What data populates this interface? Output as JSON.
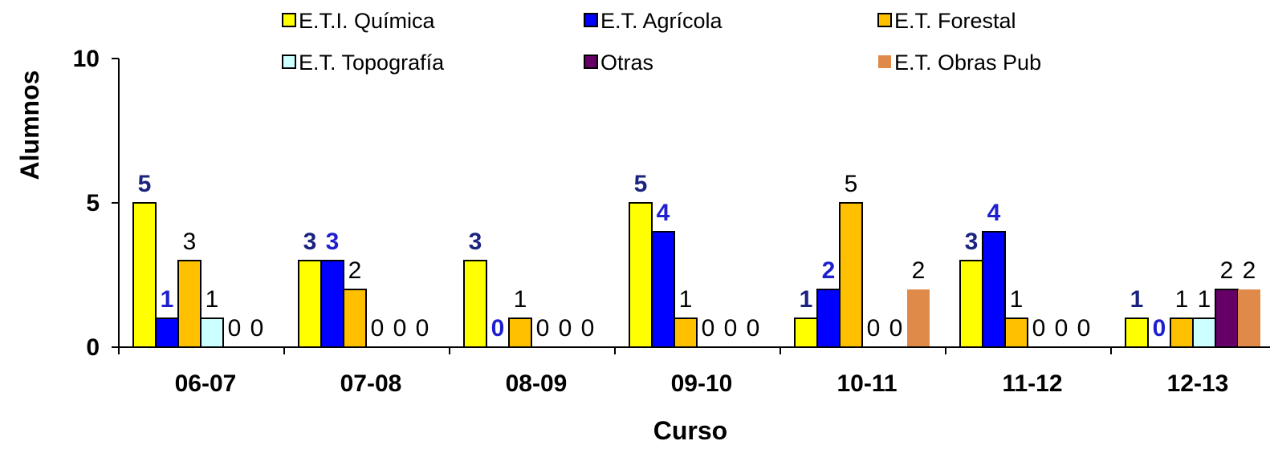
{
  "chart_data": {
    "type": "bar",
    "title": "",
    "xlabel": "Curso",
    "ylabel": "Alumnos",
    "ylim": [
      0,
      10
    ],
    "yticks": [
      "0",
      "5",
      "10"
    ],
    "grid": false,
    "legend_position": "top",
    "categories": [
      "06-07",
      "07-08",
      "08-09",
      "09-10",
      "10-11",
      "11-12",
      "12-13"
    ],
    "series": [
      {
        "name": "E.T.I. Química",
        "color": "#FFFF00",
        "values": [
          5,
          3,
          3,
          5,
          1,
          3,
          1
        ]
      },
      {
        "name": "E.T. Agrícola",
        "color": "#0000FF",
        "values": [
          1,
          3,
          0,
          4,
          2,
          4,
          0
        ]
      },
      {
        "name": "E.T. Forestal",
        "color": "#FFC000",
        "values": [
          3,
          2,
          1,
          1,
          5,
          1,
          1
        ]
      },
      {
        "name": "E.T. Topografía",
        "color": "#CCFFFF",
        "values": [
          1,
          0,
          0,
          0,
          0,
          0,
          1
        ]
      },
      {
        "name": "Otras",
        "color": "#660066",
        "values": [
          0,
          0,
          0,
          0,
          0,
          0,
          2
        ]
      },
      {
        "name": "E.T. Obras Pub",
        "color": "#E08A4A",
        "values": [
          0,
          0,
          0,
          0,
          2,
          0,
          2
        ]
      }
    ],
    "data_labels": [
      [
        "5",
        "1",
        "3",
        "1",
        "0",
        "0"
      ],
      [
        "3",
        "3",
        "2",
        "0",
        "0",
        "0"
      ],
      [
        "3",
        "0",
        "1",
        "0",
        "0",
        "0"
      ],
      [
        "5",
        "4",
        "1",
        "0",
        "0",
        "0"
      ],
      [
        "1",
        "2",
        "5",
        "0",
        "0",
        "2"
      ],
      [
        "3",
        "4",
        "1",
        "0",
        "0",
        "0"
      ],
      [
        "1",
        "0",
        "1",
        "1",
        "2",
        "2"
      ]
    ],
    "label_colors": {
      "bold_blue": "#1F1FD0",
      "dark_navy": "#1A237E",
      "plain": "#000000"
    }
  }
}
